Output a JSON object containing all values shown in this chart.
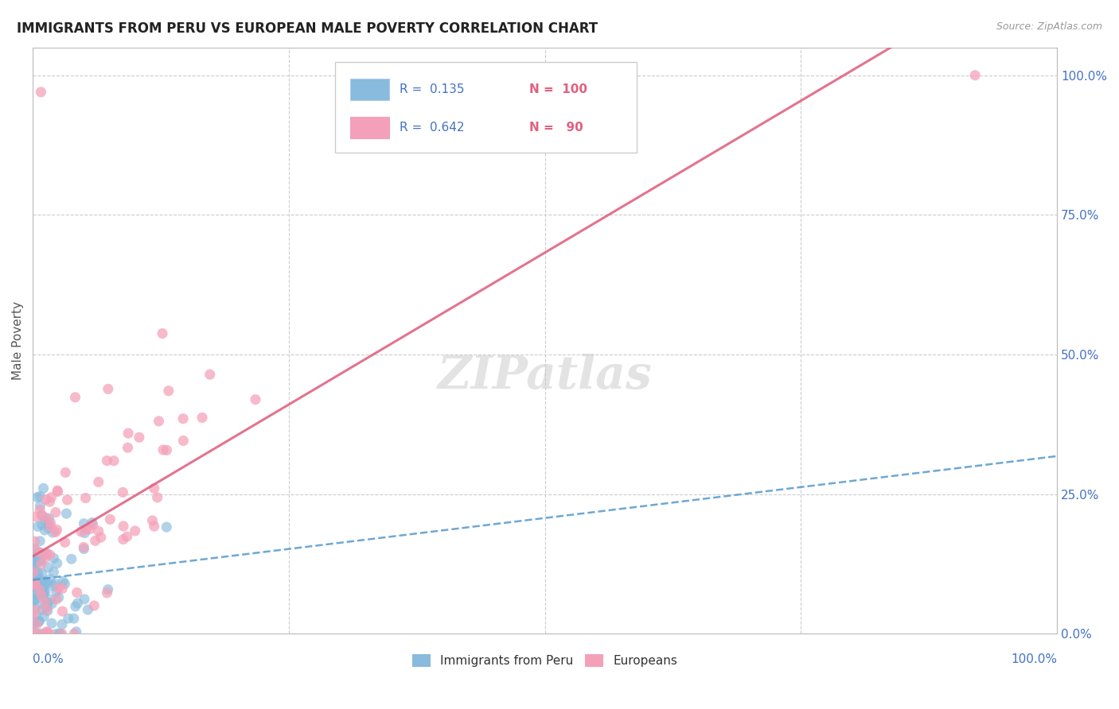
{
  "title": "IMMIGRANTS FROM PERU VS EUROPEAN MALE POVERTY CORRELATION CHART",
  "source": "Source: ZipAtlas.com",
  "ylabel": "Male Poverty",
  "blue_color": "#88bbdd",
  "pink_color": "#f4a0b8",
  "blue_line_color": "#5599cc",
  "pink_line_color": "#e06080",
  "watermark": "ZIPatlas",
  "background_color": "#ffffff",
  "r_peru": 0.135,
  "n_peru": 100,
  "r_euro": 0.642,
  "n_euro": 90,
  "xlim": [
    0,
    1.0
  ],
  "ylim": [
    0,
    1.05
  ],
  "ytick_values": [
    0.0,
    0.25,
    0.5,
    0.75,
    1.0
  ],
  "ytick_labels": [
    "0.0%",
    "25.0%",
    "50.0%",
    "75.0%",
    "100.0%"
  ],
  "title_fontsize": 12,
  "source_fontsize": 9,
  "tick_fontsize": 11,
  "legend_fontsize": 11,
  "grid_color": "#cccccc",
  "tick_color": "#4472c4",
  "ylabel_color": "#555555"
}
